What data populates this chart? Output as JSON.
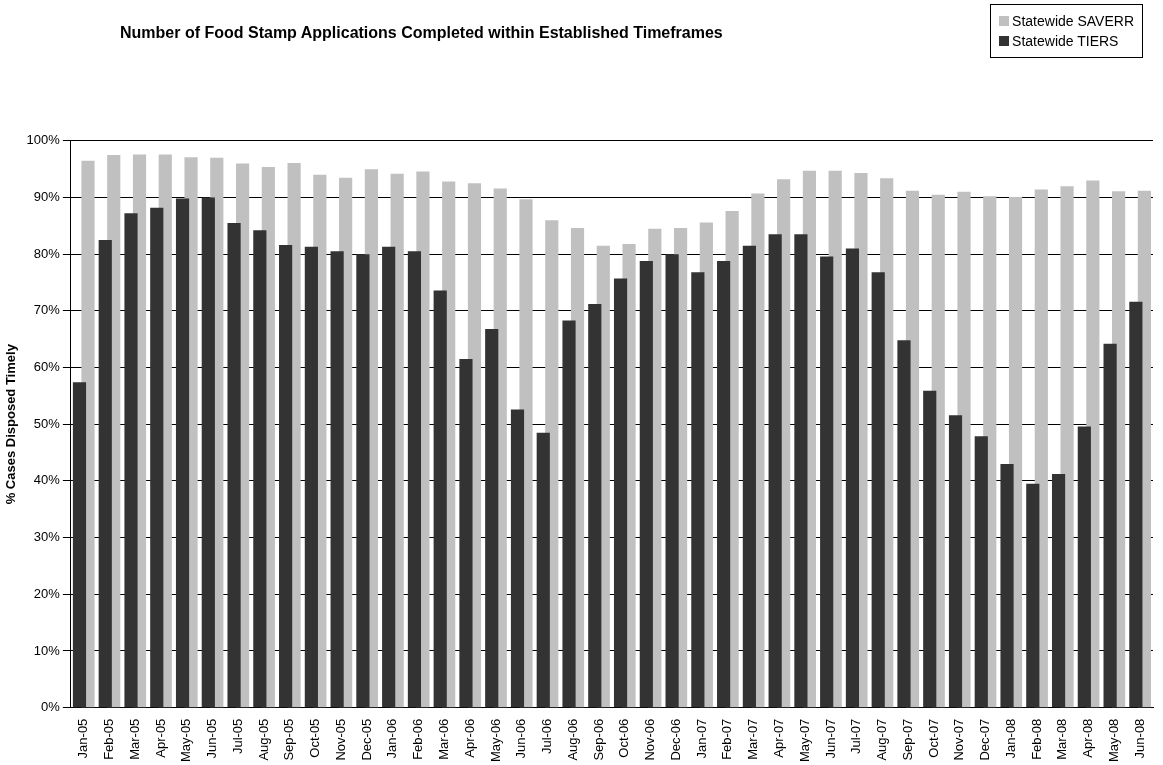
{
  "chart_data": {
    "type": "bar",
    "title": "Number of Food Stamp Applications Completed within Established Timeframes",
    "ylabel": "% Cases Disposed Timely",
    "categories": [
      "Jan-05",
      "Feb-05",
      "Mar-05",
      "Apr-05",
      "May-05",
      "Jun-05",
      "Jul-05",
      "Aug-05",
      "Sep-05",
      "Oct-05",
      "Nov-05",
      "Dec-05",
      "Jan-06",
      "Feb-06",
      "Mar-06",
      "Apr-06",
      "May-06",
      "Jun-06",
      "Jul-06",
      "Aug-06",
      "Sep-06",
      "Oct-06",
      "Nov-06",
      "Dec-06",
      "Jan-07",
      "Feb-07",
      "Mar-07",
      "Apr-07",
      "May-07",
      "Jun-07",
      "Jul-07",
      "Aug-07",
      "Sep-07",
      "Oct-07",
      "Nov-07",
      "Dec-07",
      "Jan-08",
      "Feb-08",
      "Mar-08",
      "Apr-08",
      "May-08",
      "Jun-08"
    ],
    "series": [
      {
        "name": "Statewide SAVERR",
        "color": "#c0c0c0",
        "values": [
          96.5,
          97.5,
          97.6,
          97.6,
          97.1,
          97,
          96,
          95.4,
          96.1,
          94,
          93.5,
          95,
          94.2,
          94.6,
          92.8,
          92.5,
          91.6,
          89.7,
          86,
          84.6,
          81.5,
          81.8,
          84.5,
          84.6,
          85.6,
          87.6,
          90.7,
          93.2,
          94.7,
          94.7,
          94.3,
          93.4,
          91.2,
          90.5,
          91,
          90.2,
          90.1,
          91.4,
          92,
          93,
          91.1,
          91.2
        ]
      },
      {
        "name": "Statewide TIERS",
        "color": "#333333",
        "values": [
          57.4,
          82.5,
          87.2,
          88.2,
          89.8,
          90,
          85.5,
          84.2,
          81.6,
          81.3,
          80.5,
          80,
          81.3,
          80.5,
          73.6,
          61.5,
          66.8,
          52.6,
          48.5,
          68.3,
          71.2,
          75.7,
          78.8,
          80,
          76.8,
          78.8,
          81.5,
          83.5,
          83.5,
          79.6,
          81,
          76.8,
          64.8,
          55.9,
          51.6,
          47.9,
          43,
          39.5,
          41.2,
          49.6,
          64.2,
          71.6
        ]
      }
    ],
    "ylim": [
      0,
      100
    ],
    "yticks": [
      {
        "value": 0,
        "label": "0%"
      },
      {
        "value": 10,
        "label": "10%"
      },
      {
        "value": 20,
        "label": "20%"
      },
      {
        "value": 30,
        "label": "30%"
      },
      {
        "value": 40,
        "label": "40%"
      },
      {
        "value": 50,
        "label": "50%"
      },
      {
        "value": 60,
        "label": "60%"
      },
      {
        "value": 70,
        "label": "70%"
      },
      {
        "value": 80,
        "label": "80%"
      },
      {
        "value": 90,
        "label": "90%"
      },
      {
        "value": 100,
        "label": "100%"
      }
    ],
    "grid": "y",
    "legend": "top right"
  }
}
